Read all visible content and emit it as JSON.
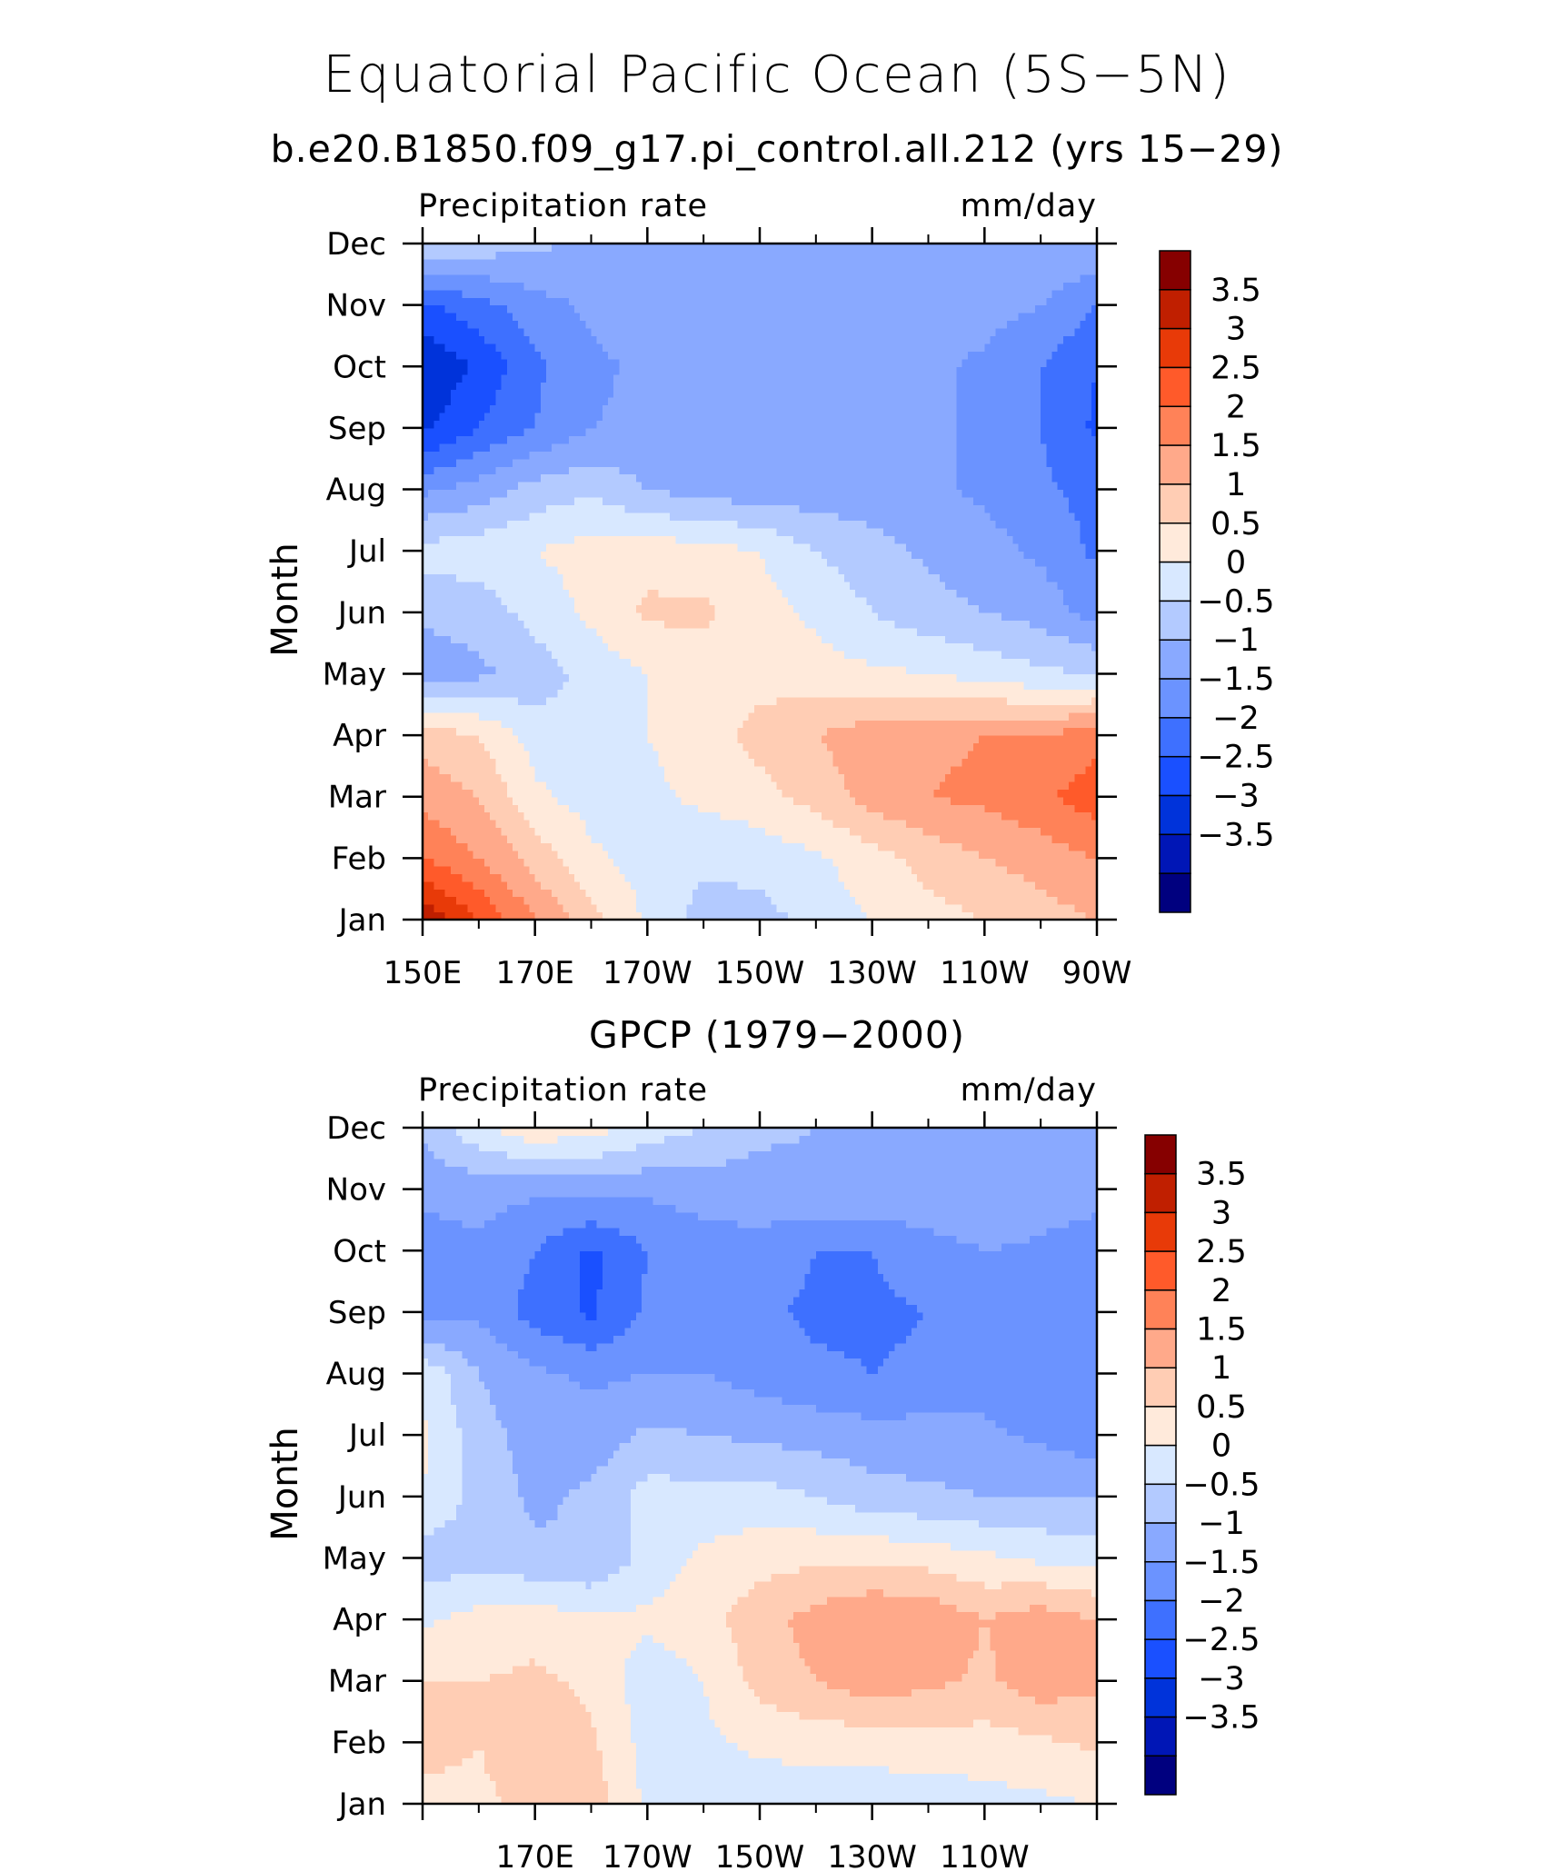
{
  "title": "Equatorial Pacific Ocean (5S−5N)",
  "subtitle": "b.e20.B1850.f09_g17.pi_control.all.212 (yrs 15−29)",
  "second_title": "GPCP (1979−2000)",
  "colors": [
    "#00007f",
    "#0016b6",
    "#0033da",
    "#1a50ff",
    "#3e70ff",
    "#6b93ff",
    "#89a9ff",
    "#b3caff",
    "#d8e8ff",
    "#ffeadb",
    "#ffcdb4",
    "#ffa98a",
    "#ff8258",
    "#ff5a2a",
    "#e83a08",
    "#c01f00",
    "#860000"
  ],
  "chart_data": [
    {
      "type": "heatmap",
      "name": "model",
      "left_label": "Precipitation rate",
      "right_label": "mm/day",
      "ylabel": "Month",
      "x_ticks": [
        "150E",
        "170E",
        "170W",
        "150W",
        "130W",
        "110W",
        "90W"
      ],
      "y_ticks": [
        "Jan",
        "Feb",
        "Mar",
        "Apr",
        "May",
        "Jun",
        "Jul",
        "Aug",
        "Sep",
        "Oct",
        "Nov",
        "Dec"
      ],
      "xlim": [
        150,
        270
      ],
      "ylim": [
        1,
        12
      ],
      "colorbar_labels": [
        "3.5",
        "3",
        "2.5",
        "2",
        "1.5",
        "1",
        "0.5",
        "0",
        "−0.5",
        "−1",
        "−1.5",
        "−2",
        "−2.5",
        "−3",
        "−3.5"
      ],
      "columns": [
        150,
        160,
        170,
        180,
        190,
        200,
        210,
        220,
        230,
        240,
        250,
        260,
        270
      ],
      "values": [
        [
          4.0,
          3.0,
          2.0,
          1.2,
          0.4,
          -0.2,
          -0.2,
          0.2,
          0.5,
          0.8,
          1.0,
          1.3,
          1.5
        ],
        [
          2.5,
          2.0,
          1.3,
          0.6,
          0.3,
          0.1,
          0.2,
          0.4,
          0.8,
          1.2,
          1.5,
          1.7,
          2.0
        ],
        [
          1.8,
          1.5,
          0.6,
          0.3,
          0.4,
          0.6,
          0.8,
          1.2,
          1.7,
          2.0,
          2.1,
          2.4,
          2.8
        ],
        [
          1.3,
          1.0,
          0.3,
          0.2,
          0.5,
          0.7,
          1.2,
          1.5,
          1.8,
          1.9,
          2.0,
          2.0,
          2.3
        ],
        [
          -0.8,
          -0.6,
          -0.3,
          0.2,
          0.5,
          0.7,
          0.8,
          0.7,
          0.6,
          0.5,
          0.3,
          0.1,
          0.0
        ],
        [
          -0.4,
          -0.3,
          0.2,
          0.6,
          1.1,
          1.1,
          0.7,
          0.4,
          0.0,
          -0.3,
          -0.5,
          -0.7,
          -1.2
        ],
        [
          0.2,
          0.3,
          0.5,
          0.7,
          0.8,
          0.7,
          0.5,
          0.0,
          -0.3,
          -0.6,
          -0.8,
          -1.1,
          -1.6
        ],
        [
          -1.1,
          -0.8,
          -0.3,
          -0.1,
          -0.5,
          -0.7,
          -0.8,
          -0.8,
          -0.8,
          -0.9,
          -1.1,
          -1.4,
          -1.7
        ],
        [
          -2.6,
          -2.0,
          -1.5,
          -1.0,
          -0.9,
          -0.8,
          -0.8,
          -0.8,
          -0.8,
          -0.9,
          -1.1,
          -1.5,
          -2.1
        ],
        [
          -3.0,
          -2.4,
          -1.6,
          -1.1,
          -0.9,
          -0.8,
          -0.8,
          -0.8,
          -0.8,
          -0.9,
          -1.1,
          -1.5,
          -2.0
        ],
        [
          -2.1,
          -1.7,
          -1.2,
          -0.9,
          -0.8,
          -0.8,
          -0.8,
          -0.8,
          -0.8,
          -0.8,
          -0.8,
          -1.0,
          -1.5
        ],
        [
          0.1,
          -0.2,
          -0.4,
          -0.6,
          -0.7,
          -0.7,
          -0.7,
          -0.7,
          -0.7,
          -0.7,
          -0.6,
          -0.5,
          -0.6
        ]
      ]
    },
    {
      "type": "heatmap",
      "name": "gpcp",
      "left_label": "Precipitation rate",
      "right_label": "mm/day",
      "ylabel": "Month",
      "x_ticks": [
        "170E",
        "170W",
        "150W",
        "130W",
        "110W"
      ],
      "y_ticks": [
        "Jan",
        "Feb",
        "Mar",
        "Apr",
        "May",
        "Jun",
        "Jul",
        "Aug",
        "Sep",
        "Oct",
        "Nov",
        "Dec"
      ],
      "xlim": [
        150,
        270
      ],
      "ylim": [
        1,
        12
      ],
      "colorbar_labels": [
        "3.5",
        "3",
        "2.5",
        "2",
        "1.5",
        "1",
        "0.5",
        "0",
        "−0.5",
        "−1",
        "−1.5",
        "−2",
        "−2.5",
        "−3",
        "−3.5"
      ],
      "columns": [
        150,
        160,
        170,
        180,
        190,
        200,
        210,
        220,
        230,
        240,
        250,
        260,
        270
      ],
      "values": [
        [
          0.8,
          0.9,
          1.1,
          1.3,
          0.4,
          0.3,
          0.2,
          0.2,
          0.2,
          0.2,
          0.3,
          0.4,
          0.5
        ],
        [
          1.2,
          1.0,
          1.4,
          1.1,
          0.3,
          0.4,
          0.6,
          0.7,
          0.7,
          0.8,
          0.8,
          0.9,
          1.1
        ],
        [
          1.0,
          1.0,
          1.1,
          0.9,
          0.2,
          0.5,
          1.2,
          1.5,
          1.8,
          1.6,
          1.4,
          1.8,
          1.6
        ],
        [
          0.4,
          0.7,
          0.8,
          0.6,
          0.6,
          0.8,
          1.3,
          1.7,
          2.0,
          1.9,
          1.5,
          1.8,
          1.5
        ],
        [
          -0.3,
          -0.2,
          -0.4,
          -0.5,
          0.2,
          0.6,
          0.8,
          0.9,
          0.9,
          0.8,
          0.6,
          0.4,
          0.3
        ],
        [
          0.5,
          -0.2,
          -0.6,
          -0.4,
          0.2,
          0.2,
          0.2,
          0.0,
          -0.3,
          -0.4,
          -0.5,
          -0.5,
          -0.5
        ],
        [
          0.6,
          -0.3,
          -0.7,
          -0.8,
          -0.4,
          -0.5,
          -0.6,
          -0.7,
          -0.8,
          -0.8,
          -0.9,
          -1.1,
          -1.3
        ],
        [
          0.4,
          -0.5,
          -0.9,
          -1.1,
          -1.0,
          -1.0,
          -1.2,
          -1.4,
          -1.5,
          -1.4,
          -1.2,
          -1.3,
          -1.4
        ],
        [
          -1.3,
          -1.1,
          -1.7,
          -2.1,
          -1.4,
          -1.1,
          -1.4,
          -1.6,
          -1.6,
          -1.5,
          -1.2,
          -1.2,
          -1.3
        ],
        [
          -1.2,
          -1.1,
          -1.5,
          -2.1,
          -1.5,
          -1.2,
          -1.2,
          -1.5,
          -1.5,
          -1.2,
          -1.0,
          -1.1,
          -1.3
        ],
        [
          -0.9,
          -0.8,
          -0.9,
          -0.8,
          -0.9,
          -0.8,
          -0.7,
          -0.6,
          -0.6,
          -0.6,
          -0.6,
          -0.7,
          -0.8
        ],
        [
          -0.4,
          0.4,
          0.9,
          0.7,
          0.3,
          0.0,
          -0.4,
          -0.5,
          -0.5,
          -0.5,
          -0.5,
          -0.5,
          -0.5
        ]
      ]
    }
  ]
}
